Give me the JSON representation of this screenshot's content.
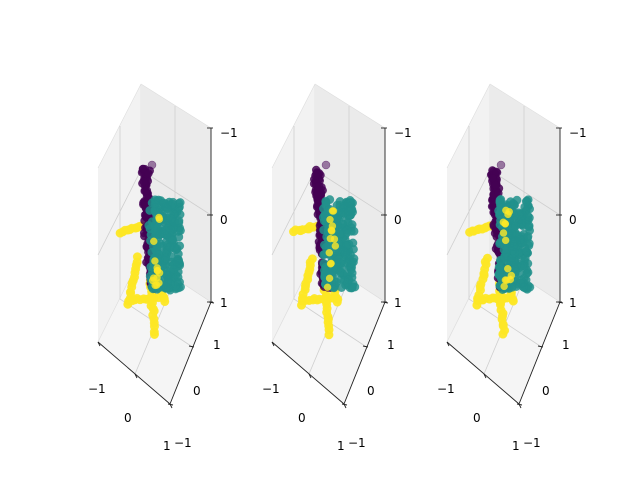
{
  "chart_data": [
    {
      "type": "scatter",
      "projection": "3d",
      "xlim": [
        -1,
        1
      ],
      "ylim": [
        -1,
        1
      ],
      "zlim": [
        -1,
        1
      ],
      "x_ticks": [
        "−1",
        "0",
        "1"
      ],
      "y_ticks": [
        "−1",
        "0",
        "1"
      ],
      "z_ticks": [
        "−1",
        "0",
        "1"
      ],
      "series": [
        {
          "color": "#440154",
          "label_value": 0
        },
        {
          "color": "#21918c",
          "label_value": 1
        },
        {
          "color": "#fde725",
          "label_value": 2
        }
      ]
    },
    {
      "type": "scatter",
      "projection": "3d",
      "xlim": [
        -1,
        1
      ],
      "ylim": [
        -1,
        1
      ],
      "zlim": [
        -1,
        1
      ],
      "x_ticks": [
        "−1",
        "0",
        "1"
      ],
      "y_ticks": [
        "−1",
        "0",
        "1"
      ],
      "z_ticks": [
        "−1",
        "0",
        "1"
      ],
      "series": [
        {
          "color": "#440154",
          "label_value": 0
        },
        {
          "color": "#21918c",
          "label_value": 1
        },
        {
          "color": "#fde725",
          "label_value": 2
        }
      ]
    },
    {
      "type": "scatter",
      "projection": "3d",
      "xlim": [
        -1,
        1
      ],
      "ylim": [
        -1,
        1
      ],
      "zlim": [
        -1,
        1
      ],
      "x_ticks": [
        "−1",
        "0",
        "1"
      ],
      "y_ticks": [
        "−1",
        "0",
        "1"
      ],
      "z_ticks": [
        "−1",
        "0",
        "1"
      ],
      "series": [
        {
          "color": "#440154",
          "label_value": 0
        },
        {
          "color": "#21918c",
          "label_value": 1
        },
        {
          "color": "#fde725",
          "label_value": 2
        }
      ]
    }
  ]
}
